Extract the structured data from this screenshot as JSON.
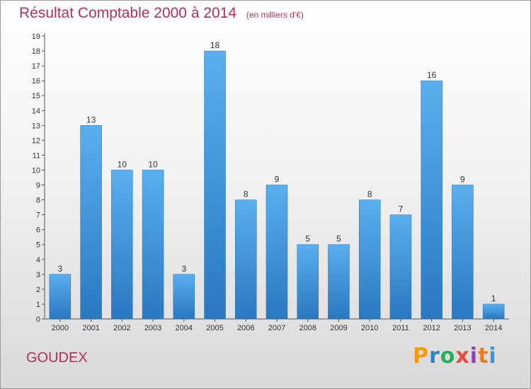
{
  "title": "Résultat Comptable 2000 à 2014",
  "subtitle": "(en milliers d'€)",
  "commune": "GOUDEX",
  "logo": {
    "letters": [
      "P",
      "r",
      "o",
      "x",
      "i",
      "t",
      "i"
    ],
    "colors": [
      "#f39c12",
      "#2e86c1",
      "#27ae60",
      "#e74c3c",
      "#8e44ad",
      "#e67e22",
      "#3498db"
    ]
  },
  "chart_data": {
    "type": "bar",
    "categories": [
      "2000",
      "2001",
      "2002",
      "2003",
      "2004",
      "2005",
      "2006",
      "2007",
      "2008",
      "2009",
      "2010",
      "2011",
      "2012",
      "2013",
      "2014"
    ],
    "values": [
      3,
      13,
      10,
      10,
      3,
      18,
      8,
      9,
      5,
      5,
      8,
      7,
      16,
      9,
      1
    ],
    "ylim": [
      0,
      19
    ],
    "yticks": [
      0,
      1,
      2,
      3,
      4,
      5,
      6,
      7,
      8,
      9,
      10,
      11,
      12,
      13,
      14,
      15,
      16,
      17,
      18,
      19
    ],
    "bar_color": "#3a8fd8",
    "grid": false,
    "legend": "none"
  }
}
